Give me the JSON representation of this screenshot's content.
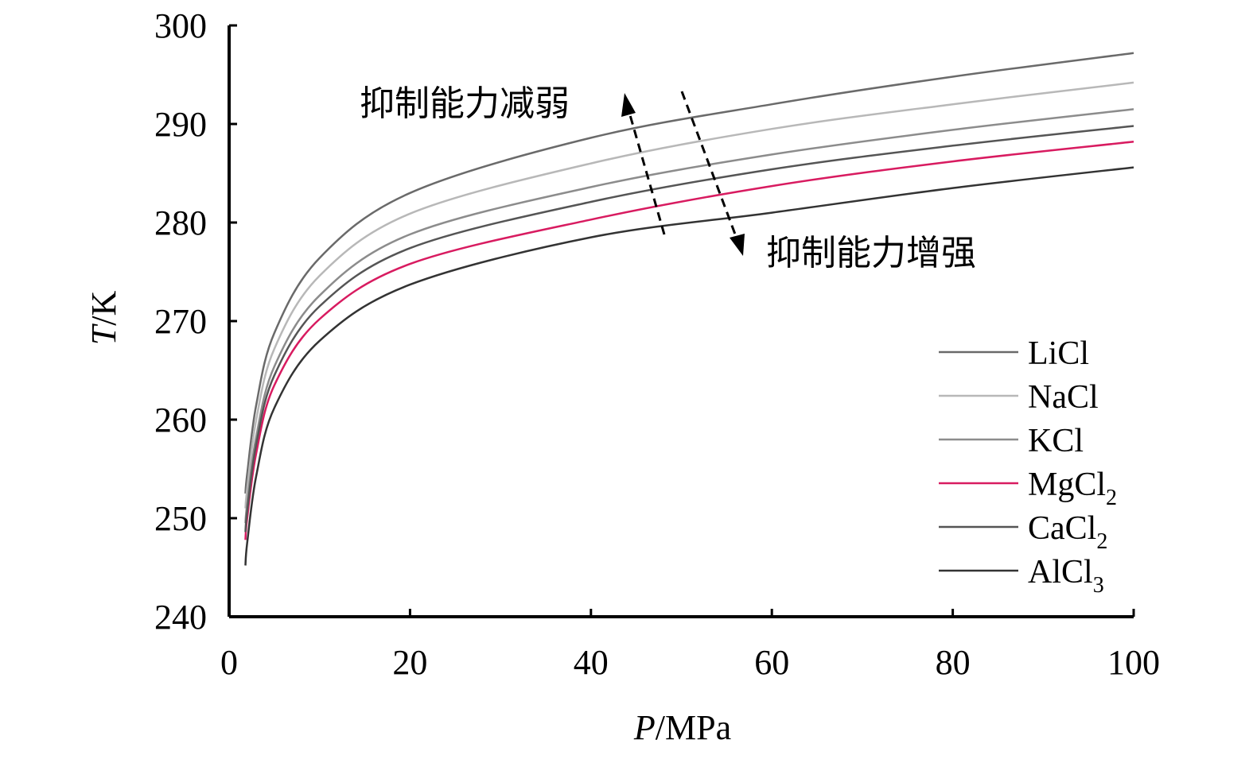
{
  "chart_data": {
    "type": "line",
    "xlabel_italic": "P",
    "xlabel_unit": "/MPa",
    "ylabel_italic": "T",
    "ylabel_unit": "/K",
    "xlim": [
      0,
      100
    ],
    "ylim": [
      240,
      300
    ],
    "xticks": [
      "0",
      "20",
      "40",
      "60",
      "80",
      "100"
    ],
    "yticks": [
      "240",
      "250",
      "260",
      "270",
      "280",
      "290",
      "300"
    ],
    "x": [
      1.8,
      2,
      3,
      5,
      10,
      20,
      40,
      60,
      80,
      100
    ],
    "series": [
      {
        "name": "LiCl",
        "sub": "",
        "color": "#6a6a6a",
        "values": [
          252.5,
          254.5,
          261.5,
          268.8,
          276.4,
          283.0,
          288.6,
          292.0,
          294.8,
          297.2
        ]
      },
      {
        "name": "NaCl",
        "sub": "",
        "color": "#b8b8b8",
        "values": [
          251.0,
          253.0,
          260.0,
          267.2,
          274.6,
          280.9,
          286.0,
          289.5,
          292.0,
          294.2
        ]
      },
      {
        "name": "KCl",
        "sub": "",
        "color": "#8c8c8c",
        "values": [
          249.5,
          251.5,
          258.3,
          265.4,
          272.6,
          278.8,
          283.6,
          286.9,
          289.4,
          291.5
        ]
      },
      {
        "name": "MgCl",
        "sub": "2",
        "color": "#d81b60",
        "values": [
          247.8,
          250.0,
          256.6,
          263.5,
          270.2,
          275.8,
          280.3,
          283.7,
          286.2,
          288.2
        ]
      },
      {
        "name": "CaCl",
        "sub": "2",
        "color": "#555555",
        "values": [
          248.6,
          250.7,
          257.5,
          264.5,
          271.5,
          277.4,
          282.1,
          285.4,
          287.8,
          289.8
        ]
      },
      {
        "name": "AlCl",
        "sub": "3",
        "color": "#333333",
        "values": [
          245.2,
          247.5,
          254.3,
          261.2,
          268.0,
          273.7,
          278.5,
          281.0,
          283.5,
          285.6
        ]
      }
    ],
    "annotations": [
      {
        "text": "抑制能力减弱"
      },
      {
        "text": "抑制能力增强"
      }
    ],
    "legend_position": "bottom-right",
    "grid": false
  }
}
